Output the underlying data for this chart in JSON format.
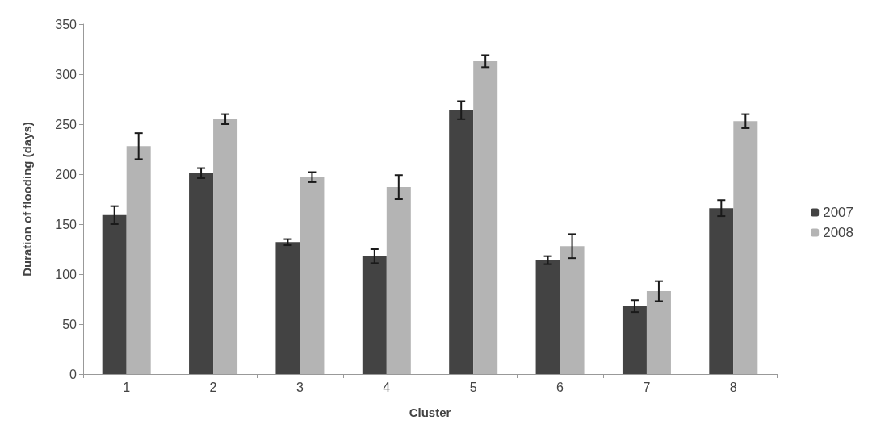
{
  "chart_data": {
    "type": "bar",
    "xlabel": "Cluster",
    "ylabel": "Duration of flooding (days)",
    "categories": [
      "1",
      "2",
      "3",
      "4",
      "5",
      "6",
      "7",
      "8"
    ],
    "series": [
      {
        "name": "2007",
        "color": "#434343",
        "values": [
          159,
          201,
          132,
          118,
          264,
          114,
          68,
          166
        ],
        "errors": [
          9,
          5,
          3,
          7,
          9,
          4,
          6,
          8
        ]
      },
      {
        "name": "2008",
        "color": "#b4b4b4",
        "values": [
          228,
          255,
          197,
          187,
          313,
          128,
          83,
          253
        ],
        "errors": [
          13,
          5,
          5,
          12,
          6,
          12,
          10,
          7
        ]
      }
    ],
    "ylim": [
      0,
      350
    ],
    "yticks": [
      0,
      50,
      100,
      150,
      200,
      250,
      300,
      350
    ],
    "grid": false,
    "legend": "right"
  }
}
